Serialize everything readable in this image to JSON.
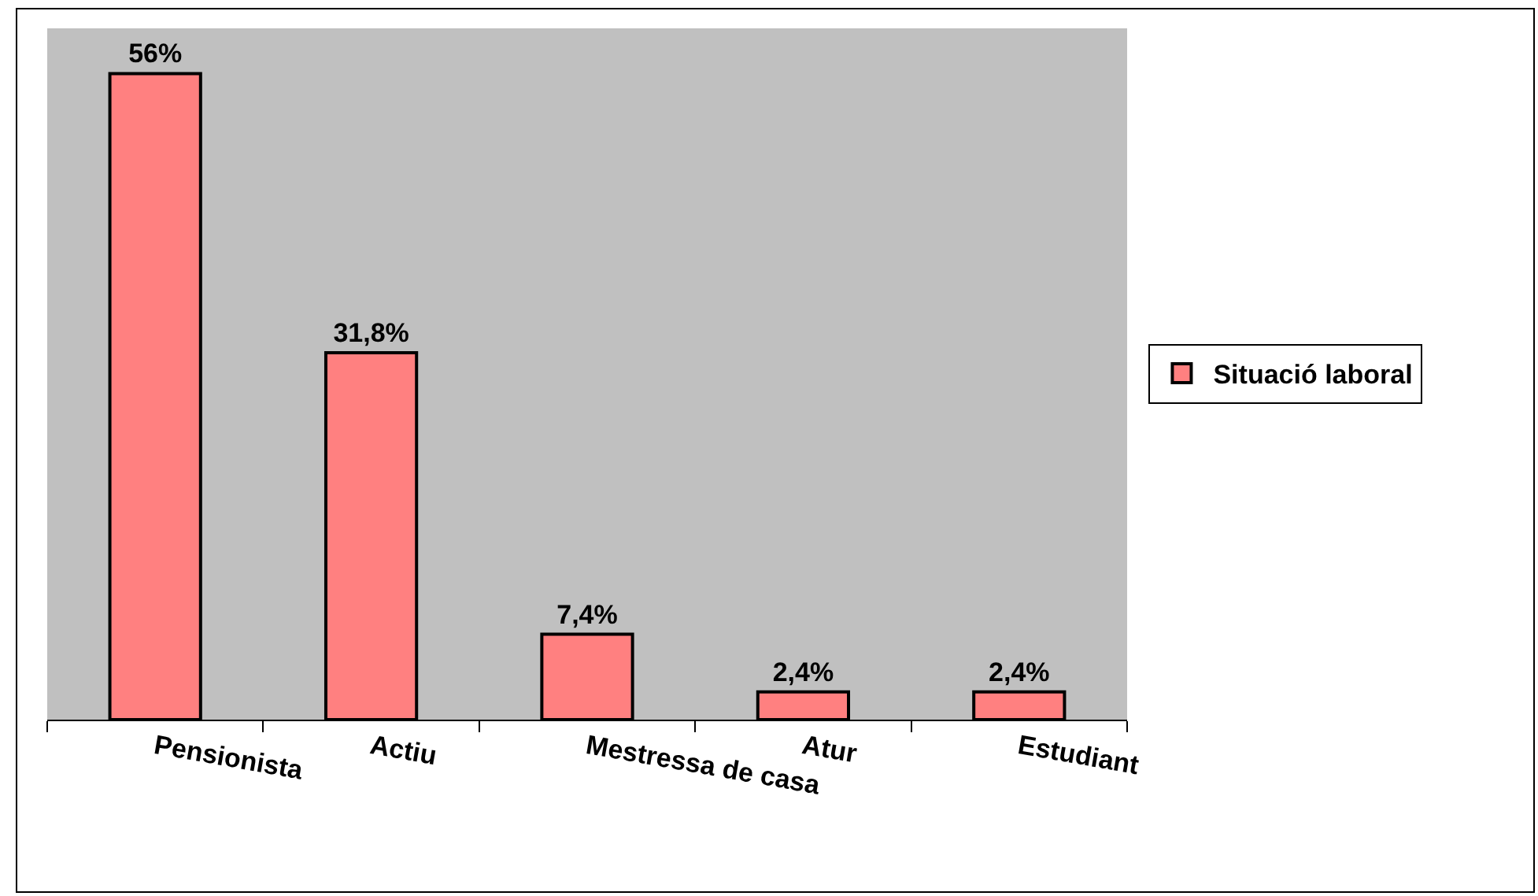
{
  "chart_data": {
    "type": "bar",
    "categories": [
      "Pensionista",
      "Actiu",
      "Mestressa de casa",
      "Atur",
      "Estudiant"
    ],
    "series": [
      {
        "name": "Situació laboral",
        "color": "#ff8080",
        "values": [
          56,
          31.8,
          7.4,
          2.4,
          2.4
        ],
        "value_labels": [
          "56%",
          "31,8%",
          "7,4%",
          "2,4%",
          "2,4%"
        ]
      }
    ],
    "tick_labels": "x",
    "legend": "right"
  }
}
